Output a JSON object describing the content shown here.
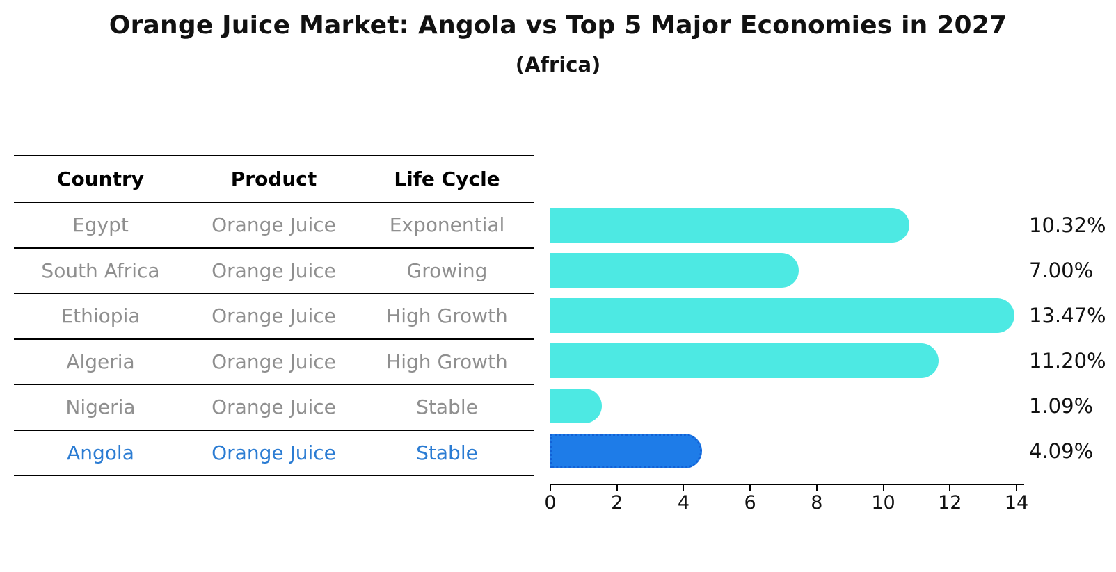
{
  "chart_data": {
    "type": "bar",
    "orientation": "horizontal",
    "title": "Orange Juice Market: Angola vs Top 5 Major Economies in 2027",
    "subtitle": "(Africa)",
    "categories": [
      "Egypt",
      "South Africa",
      "Ethiopia",
      "Algeria",
      "Nigeria",
      "Angola"
    ],
    "values": [
      10.32,
      7.0,
      13.47,
      11.2,
      1.09,
      4.09
    ],
    "value_labels": [
      "10.32%",
      "7.00%",
      "13.47%",
      "11.20%",
      "1.09%",
      "4.09%"
    ],
    "highlight_index": 5,
    "xlim": [
      0,
      14
    ],
    "x_ticks": [
      0,
      2,
      4,
      6,
      8,
      10,
      12,
      14
    ],
    "grid": false,
    "legend": false,
    "bar_color": "#4DE9E3",
    "highlight_bar_color": "#1E7CE8",
    "highlight_bar_border_color": "#1261D6"
  },
  "table": {
    "headers": [
      "Country",
      "Product",
      "Life Cycle"
    ],
    "rows": [
      {
        "country": "Egypt",
        "product": "Orange Juice",
        "life_cycle": "Exponential",
        "highlight": false
      },
      {
        "country": "South Africa",
        "product": "Orange Juice",
        "life_cycle": "Growing",
        "highlight": false
      },
      {
        "country": "Ethiopia",
        "product": "Orange Juice",
        "life_cycle": "High Growth",
        "highlight": false
      },
      {
        "country": "Algeria",
        "product": "Orange Juice",
        "life_cycle": "High Growth",
        "highlight": false
      },
      {
        "country": "Nigeria",
        "product": "Orange Juice",
        "life_cycle": "Stable",
        "highlight": false
      },
      {
        "country": "Angola",
        "product": "Orange Juice",
        "life_cycle": "Stable",
        "highlight": true
      }
    ]
  },
  "colors": {
    "row_text": "#8F8F8F",
    "highlight_text": "#2B7CD3",
    "header_text": "#000000",
    "axis": "#000000",
    "background": "#FFFFFF"
  }
}
